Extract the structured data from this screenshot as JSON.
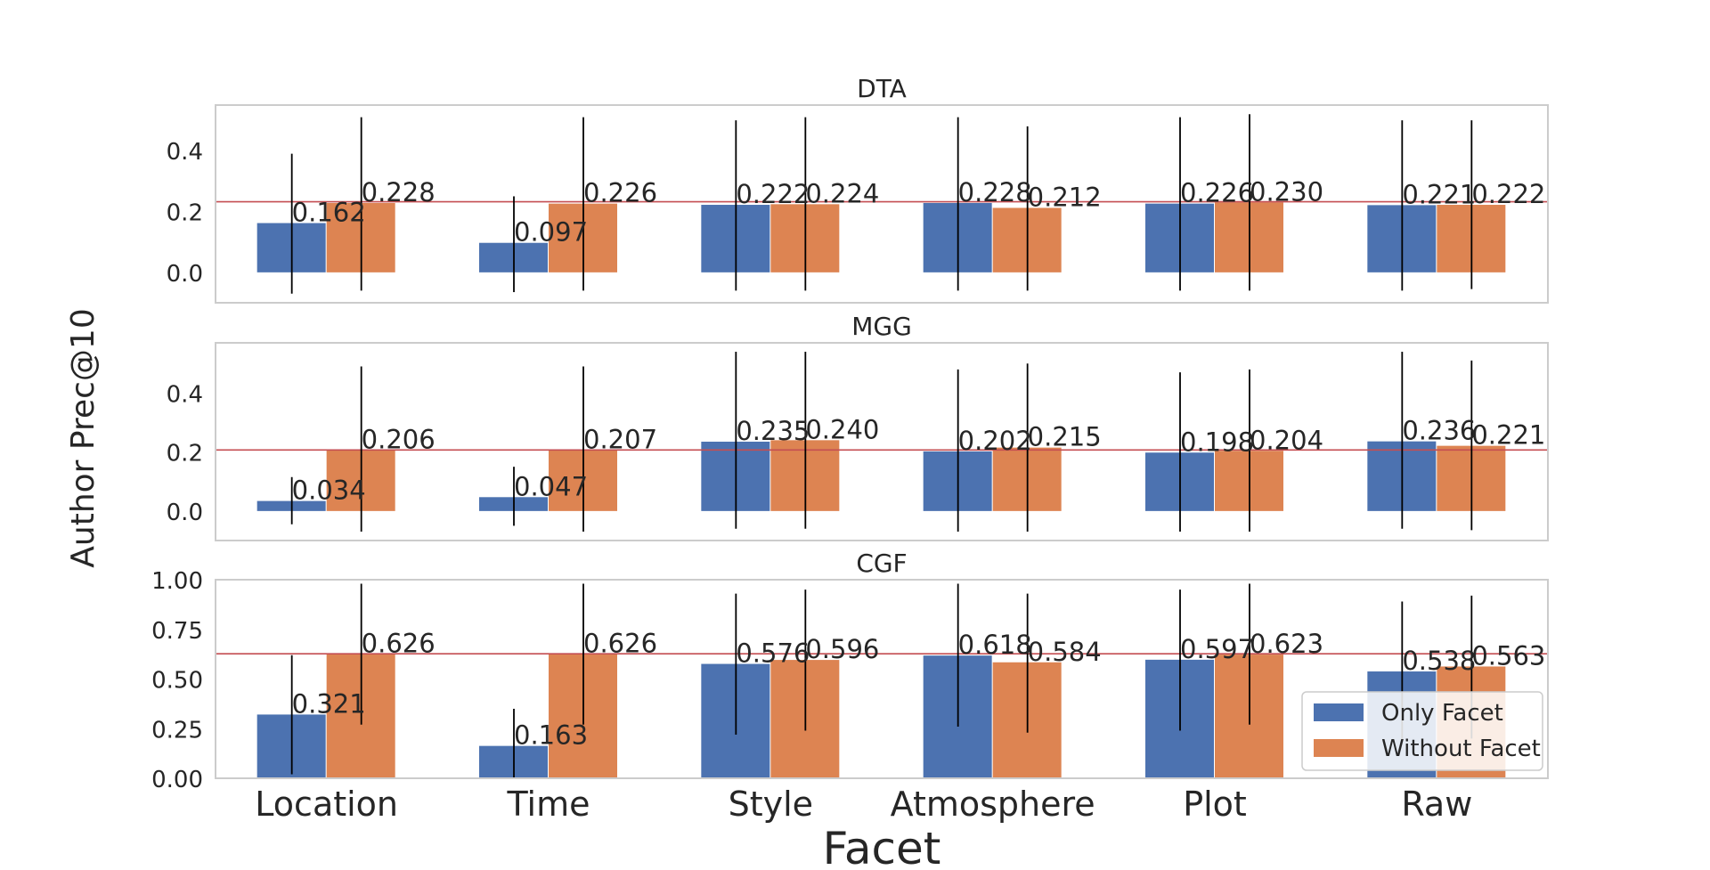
{
  "chart_data": {
    "type": "bar",
    "xlabel": "Facet",
    "ylabel": "Author Prec@10",
    "categories": [
      "Location",
      "Time",
      "Style",
      "Atmosphere",
      "Plot",
      "Raw"
    ],
    "legend": {
      "placement": "lower-right",
      "entries": [
        "Only Facet",
        "Without Facet"
      ]
    },
    "colors": {
      "only_facet": "#4c72b0",
      "without_facet": "#dd8452",
      "reference_line": "#c44e52",
      "error_bar": "#000000",
      "frame": "#cccccc"
    },
    "grid": false,
    "panels": [
      {
        "title": "DTA",
        "ylim": [
          -0.1,
          0.55
        ],
        "yticks": [
          0.0,
          0.2,
          0.4
        ],
        "ytick_labels": [
          "0.0",
          "0.2",
          "0.4"
        ],
        "reference_line": 0.232,
        "series": [
          {
            "name": "Only Facet",
            "values": [
              0.162,
              0.097,
              0.222,
              0.228,
              0.226,
              0.221
            ],
            "labels": [
              "0.162",
              "0.097",
              "0.222",
              "0.228",
              "0.226",
              "0.221"
            ],
            "err_low": [
              -0.07,
              -0.065,
              -0.06,
              -0.06,
              -0.06,
              -0.06
            ],
            "err_high": [
              0.39,
              0.25,
              0.5,
              0.51,
              0.51,
              0.5
            ]
          },
          {
            "name": "Without Facet",
            "values": [
              0.228,
              0.226,
              0.224,
              0.212,
              0.23,
              0.222
            ],
            "labels": [
              "0.228",
              "0.226",
              "0.224",
              "0.212",
              "0.230",
              "0.222"
            ],
            "err_low": [
              -0.06,
              -0.06,
              -0.06,
              -0.06,
              -0.06,
              -0.055
            ],
            "err_high": [
              0.51,
              0.51,
              0.51,
              0.48,
              0.52,
              0.5
            ]
          }
        ]
      },
      {
        "title": "MGG",
        "ylim": [
          -0.1,
          0.57
        ],
        "yticks": [
          0.0,
          0.2,
          0.4
        ],
        "ytick_labels": [
          "0.0",
          "0.2",
          "0.4"
        ],
        "reference_line": 0.207,
        "series": [
          {
            "name": "Only Facet",
            "values": [
              0.034,
              0.047,
              0.235,
              0.202,
              0.198,
              0.236
            ],
            "labels": [
              "0.034",
              "0.047",
              "0.235",
              "0.202",
              "0.198",
              "0.236"
            ],
            "err_low": [
              -0.045,
              -0.05,
              -0.06,
              -0.07,
              -0.07,
              -0.06
            ],
            "err_high": [
              0.115,
              0.15,
              0.54,
              0.48,
              0.47,
              0.54
            ]
          },
          {
            "name": "Without Facet",
            "values": [
              0.206,
              0.207,
              0.24,
              0.215,
              0.204,
              0.221
            ],
            "labels": [
              "0.206",
              "0.207",
              "0.240",
              "0.215",
              "0.204",
              "0.221"
            ],
            "err_low": [
              -0.07,
              -0.07,
              -0.06,
              -0.07,
              -0.07,
              -0.065
            ],
            "err_high": [
              0.49,
              0.49,
              0.54,
              0.5,
              0.48,
              0.51
            ]
          }
        ]
      },
      {
        "title": "CGF",
        "ylim": [
          0.0,
          1.0
        ],
        "yticks": [
          0.0,
          0.25,
          0.5,
          0.75,
          1.0
        ],
        "ytick_labels": [
          "0.00",
          "0.25",
          "0.50",
          "0.75",
          "1.00"
        ],
        "reference_line": 0.627,
        "series": [
          {
            "name": "Only Facet",
            "values": [
              0.321,
              0.163,
              0.576,
              0.618,
              0.597,
              0.538
            ],
            "labels": [
              "0.321",
              "0.163",
              "0.576",
              "0.618",
              "0.597",
              "0.538"
            ],
            "err_low": [
              0.02,
              0.0,
              0.22,
              0.26,
              0.24,
              0.19
            ],
            "err_high": [
              0.62,
              0.35,
              0.93,
              0.98,
              0.95,
              0.89
            ]
          },
          {
            "name": "Without Facet",
            "values": [
              0.626,
              0.626,
              0.596,
              0.584,
              0.623,
              0.563
            ],
            "labels": [
              "0.626",
              "0.626",
              "0.596",
              "0.584",
              "0.623",
              "0.563"
            ],
            "err_low": [
              0.27,
              0.27,
              0.24,
              0.23,
              0.27,
              0.2
            ],
            "err_high": [
              0.98,
              0.98,
              0.95,
              0.93,
              0.98,
              0.92
            ]
          }
        ]
      }
    ]
  }
}
